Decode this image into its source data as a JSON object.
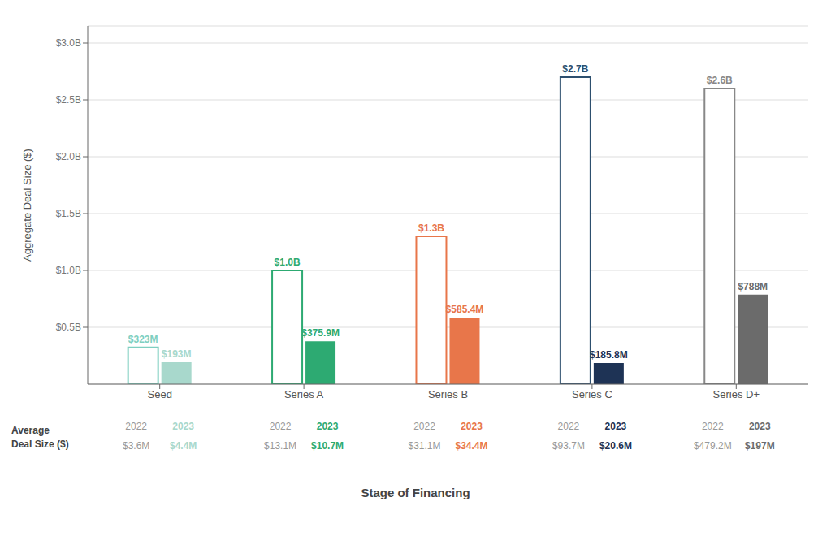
{
  "chart_data": {
    "type": "bar",
    "categories": [
      "Seed",
      "Series A",
      "Series B",
      "Series C",
      "Series D+"
    ],
    "series": [
      {
        "name": "2022",
        "values": [
          0.323,
          1.0,
          1.3,
          2.7,
          2.6
        ],
        "value_labels": [
          "$323M",
          "$1.0B",
          "$1.3B",
          "$2.7B",
          "$2.6B"
        ],
        "colors": [
          "#7ecfc0",
          "#2daa72",
          "#e8764a",
          "#2d4f6e",
          "#888888"
        ],
        "average_deal_size": [
          "$3.6M",
          "$13.1M",
          "$31.1M",
          "$93.7M",
          "$479.2M"
        ]
      },
      {
        "name": "2023",
        "values": [
          0.193,
          0.3759,
          0.5854,
          0.1858,
          0.788
        ],
        "value_labels": [
          "$193M",
          "$375.9M",
          "$585.4M",
          "$185.8M",
          "$788M"
        ],
        "colors": [
          "#a8d8cc",
          "#2daa72",
          "#e8764a",
          "#1e3355",
          "#6b6b6b"
        ],
        "average_deal_size": [
          "$4.4M",
          "$10.7M",
          "$34.4M",
          "$20.6M",
          "$197M"
        ]
      }
    ],
    "ylabel": "Aggregate Deal Size ($)",
    "xlabel": "Stage of Financing",
    "annotation": "Average\nDeal Size ($)",
    "ylim": [
      0,
      3.15
    ],
    "yticks": [
      {
        "value": 0.5,
        "label": "$0.5B"
      },
      {
        "value": 1.0,
        "label": "$1.0B"
      },
      {
        "value": 1.5,
        "label": "$1.5B"
      },
      {
        "value": 2.0,
        "label": "$2.0B"
      },
      {
        "value": 2.5,
        "label": "$2.5B"
      },
      {
        "value": 3.0,
        "label": "$3.0B"
      }
    ],
    "grid": true,
    "data_labels": true
  }
}
